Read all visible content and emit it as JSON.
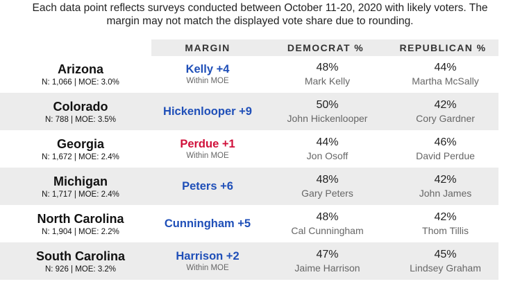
{
  "note": {
    "line1": "Each data point reflects surveys conducted between October 11-20, 2020 with likely voters. The",
    "line2": "margin may not match the displayed vote share due to rounding."
  },
  "header": {
    "margin": "MARGIN",
    "democrat": "DEMOCRAT %",
    "republican": "REPUBLICAN %"
  },
  "colors": {
    "democrat": "#1f4fb8",
    "republican": "#d0103a",
    "shade": "#ececec"
  },
  "rows": [
    {
      "state": "Arizona",
      "stats": "N: 1,066 | MOE: 3.0%",
      "margin": "Kelly +4",
      "party": "dem",
      "moe_note": "Within MOE",
      "dem_pct": "48%",
      "dem_name": "Mark Kelly",
      "rep_pct": "44%",
      "rep_name": "Martha McSally"
    },
    {
      "state": "Colorado",
      "stats": "N: 788 | MOE: 3.5%",
      "margin": "Hickenlooper +9",
      "party": "dem",
      "moe_note": "",
      "dem_pct": "50%",
      "dem_name": "John Hickenlooper",
      "rep_pct": "42%",
      "rep_name": "Cory Gardner"
    },
    {
      "state": "Georgia",
      "stats": "N: 1,672 | MOE: 2.4%",
      "margin": "Perdue +1",
      "party": "rep",
      "moe_note": "Within MOE",
      "dem_pct": "44%",
      "dem_name": "Jon Osoff",
      "rep_pct": "46%",
      "rep_name": "David Perdue"
    },
    {
      "state": "Michigan",
      "stats": "N: 1,717 | MOE: 2.4%",
      "margin": "Peters +6",
      "party": "dem",
      "moe_note": "",
      "dem_pct": "48%",
      "dem_name": "Gary Peters",
      "rep_pct": "42%",
      "rep_name": "John James"
    },
    {
      "state": "North Carolina",
      "stats": "N: 1,904 | MOE: 2.2%",
      "margin": "Cunningham +5",
      "party": "dem",
      "moe_note": "",
      "dem_pct": "48%",
      "dem_name": "Cal Cunningham",
      "rep_pct": "42%",
      "rep_name": "Thom Tillis"
    },
    {
      "state": "South Carolina",
      "stats": "N: 926 | MOE: 3.2%",
      "margin": "Harrison +2",
      "party": "dem",
      "moe_note": "Within MOE",
      "dem_pct": "47%",
      "dem_name": "Jaime Harrison",
      "rep_pct": "45%",
      "rep_name": "Lindsey Graham"
    }
  ]
}
